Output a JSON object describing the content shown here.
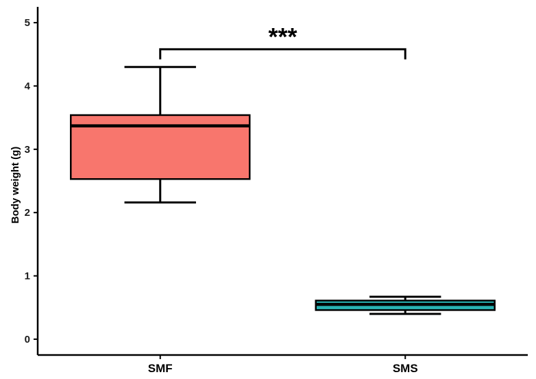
{
  "chart_data": {
    "type": "boxplot",
    "title": "",
    "xlabel": "",
    "ylabel": "Body weight (g)",
    "ylim": [
      -0.25,
      5.25
    ],
    "yticks": [
      0,
      1,
      2,
      3,
      4,
      5
    ],
    "grid": false,
    "categories": [
      "SMF",
      "SMS"
    ],
    "boxes": [
      {
        "category": "SMF",
        "min": 2.16,
        "q1": 2.53,
        "median": 3.37,
        "q3": 3.54,
        "max": 4.3,
        "color": "#F8766D"
      },
      {
        "category": "SMS",
        "min": 0.4,
        "q1": 0.46,
        "median": 0.55,
        "q3": 0.61,
        "max": 0.67,
        "color": "#28B3B3"
      }
    ],
    "significance": {
      "label": "***",
      "between": [
        "SMF",
        "SMS"
      ],
      "level": 4.58,
      "tip_drop": 0.16
    }
  }
}
